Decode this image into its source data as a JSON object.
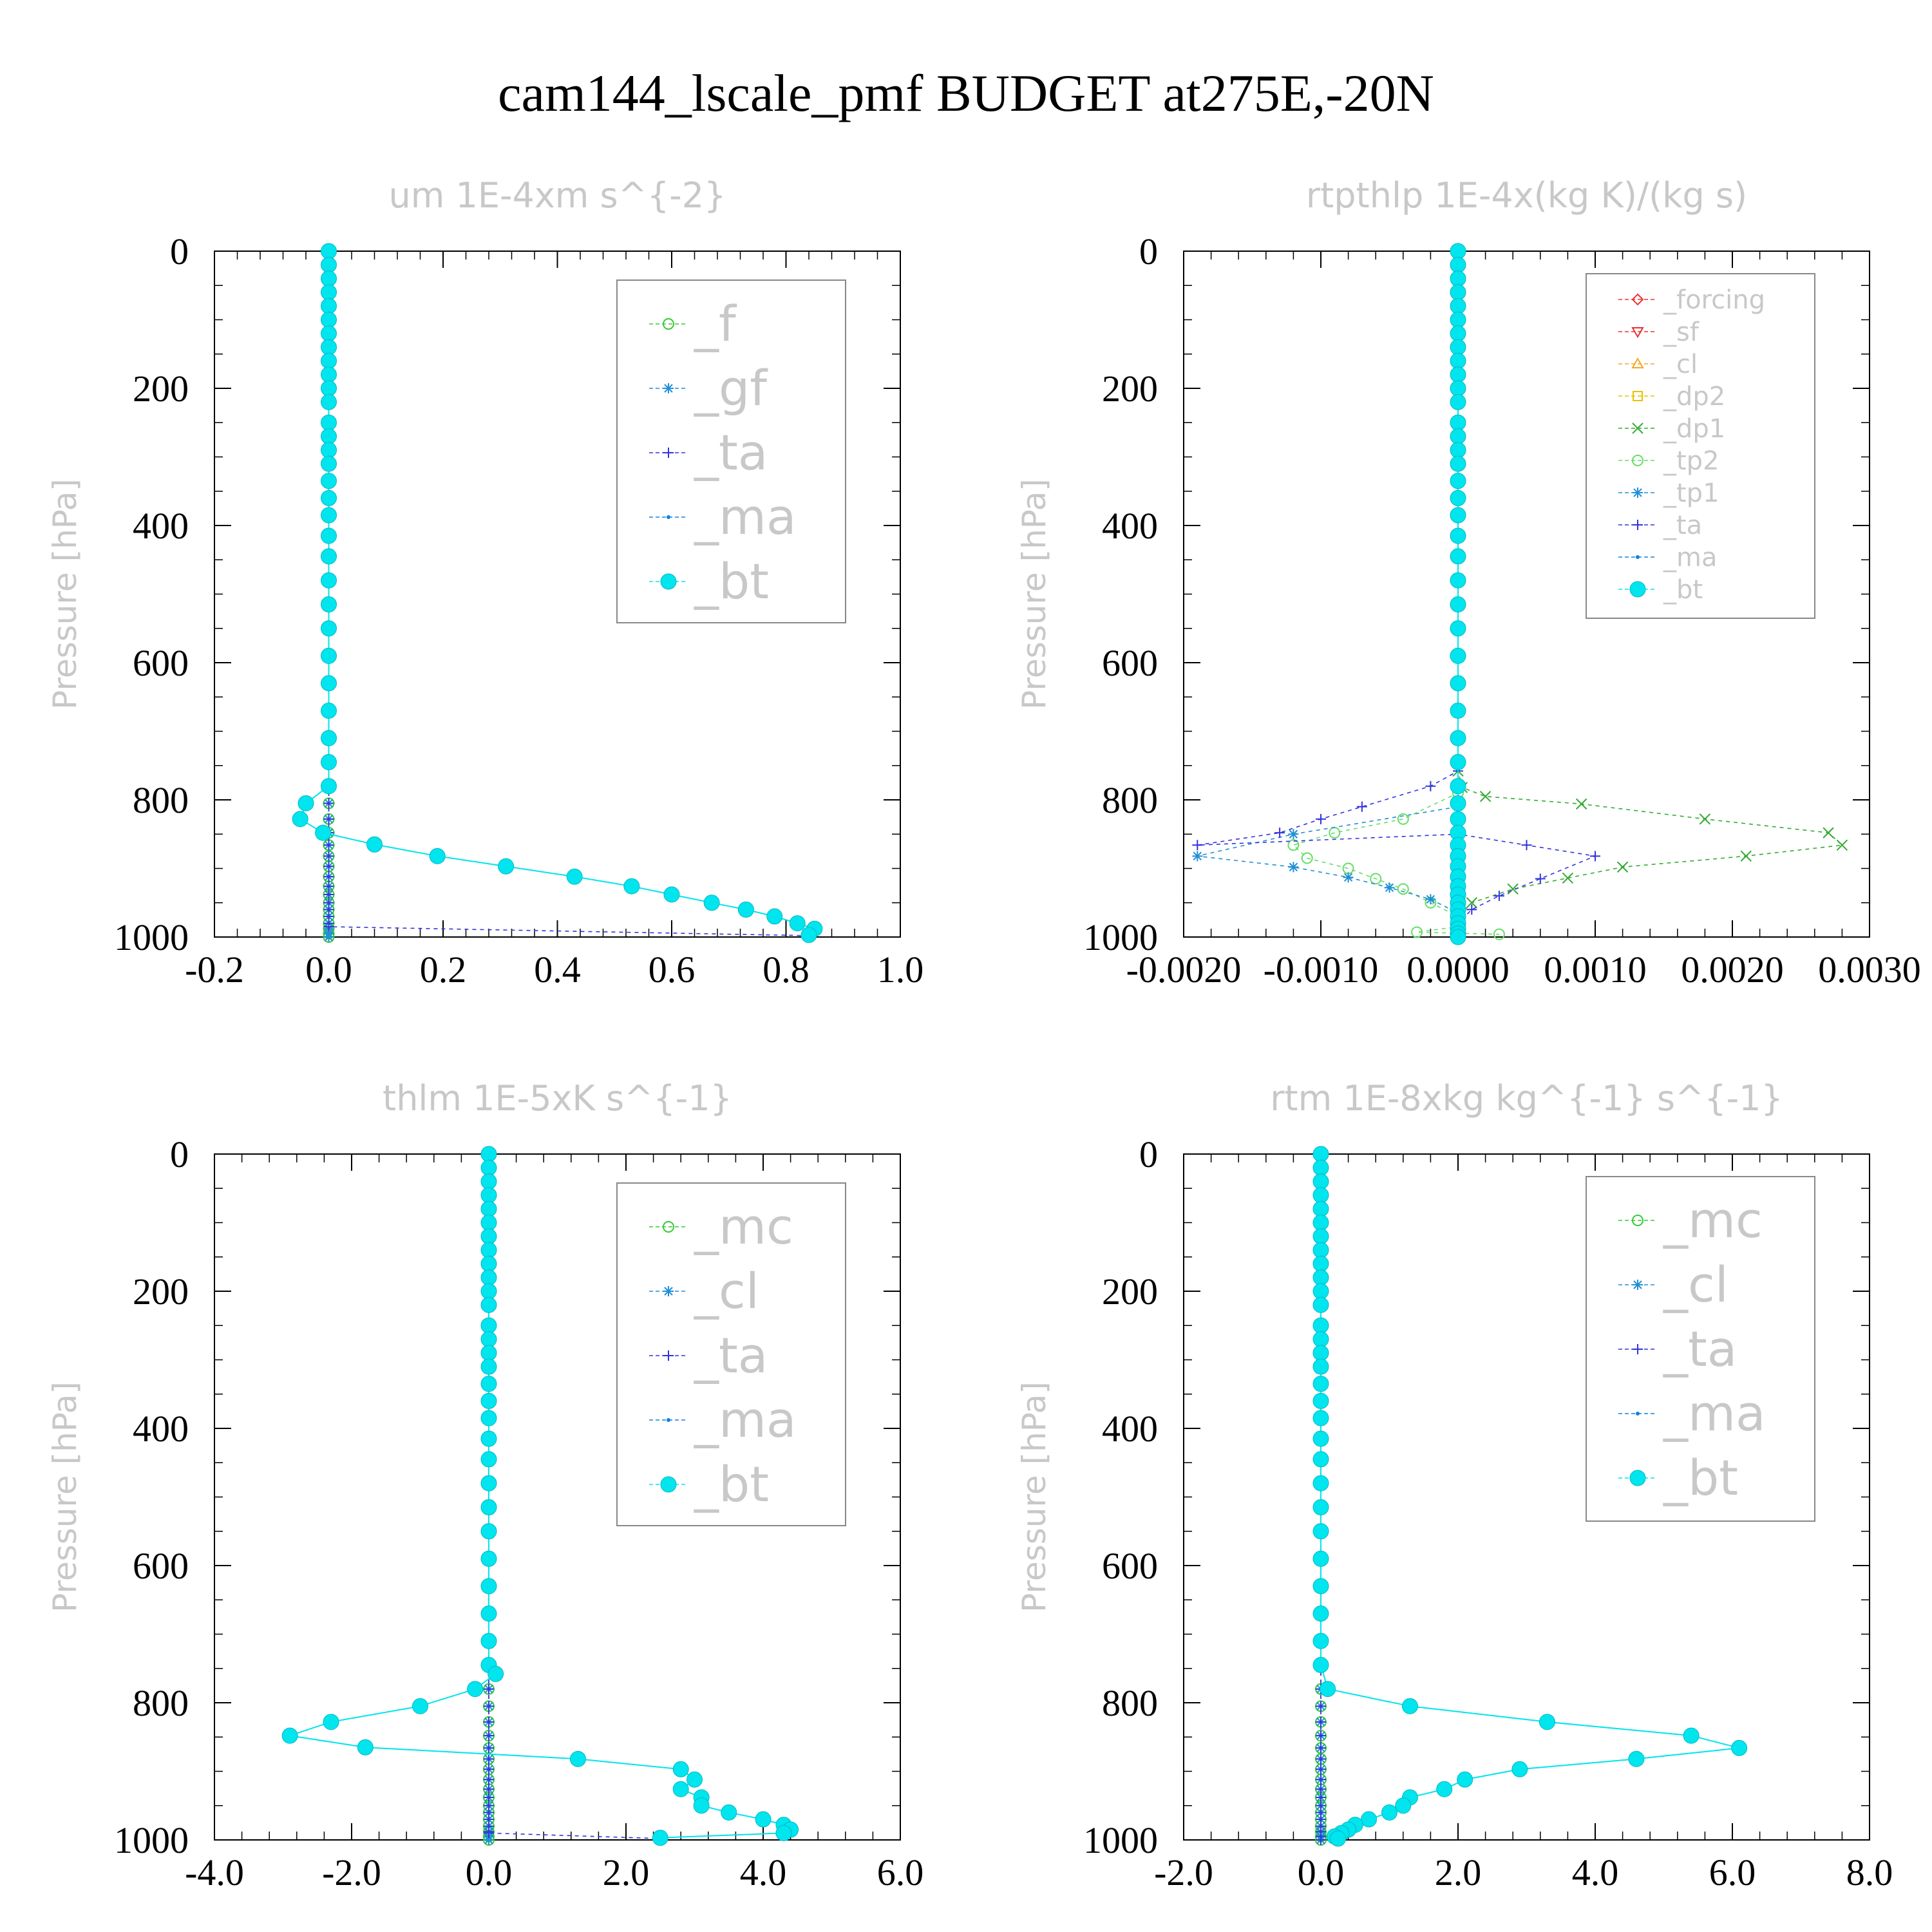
{
  "title": "cam144_lscale_pmf  BUDGET at275E,-20N",
  "chart_data": [
    {
      "type": "line",
      "title": "um   1E-4xm s^{-2}",
      "ylabel": "Pressure [hPa]",
      "xlim": [
        -0.2,
        1.0
      ],
      "ylim": [
        1000,
        0
      ],
      "xticks": [
        "-0.2",
        "0.0",
        "0.2",
        "0.4",
        "0.6",
        "0.8",
        "1.0"
      ],
      "xtick_values": [
        -0.2,
        0.0,
        0.2,
        0.4,
        0.6,
        0.8,
        1.0
      ],
      "yticks": [
        "0",
        "200",
        "400",
        "600",
        "800",
        "1000"
      ],
      "ytick_values": [
        0,
        200,
        400,
        600,
        800,
        1000
      ],
      "legend": {
        "position": "top-right",
        "size": "large"
      },
      "series": [
        {
          "name": "_f",
          "color": "#33cc33",
          "marker": "circle-open",
          "profile": "zero"
        },
        {
          "name": "_gf",
          "color": "#1f8fd6",
          "marker": "asterisk",
          "profile": "zero"
        },
        {
          "name": "_ta",
          "color": "#3333dd",
          "marker": "plus",
          "profile": "zero",
          "points": [
            [
              0.0,
              985
            ],
            [
              0.84,
              998
            ]
          ]
        },
        {
          "name": "_ma",
          "color": "#1080e0",
          "marker": "dot",
          "profile": "bt"
        },
        {
          "name": "_bt",
          "color": "#00e5ee",
          "marker": "filled-circle",
          "profile": "bt",
          "points": [
            [
              0.0,
              780
            ],
            [
              -0.04,
              805
            ],
            [
              -0.05,
              828
            ],
            [
              -0.01,
              848
            ],
            [
              0.08,
              865
            ],
            [
              0.19,
              882
            ],
            [
              0.31,
              897
            ],
            [
              0.43,
              912
            ],
            [
              0.53,
              926
            ],
            [
              0.6,
              938
            ],
            [
              0.67,
              950
            ],
            [
              0.73,
              960
            ],
            [
              0.78,
              970
            ],
            [
              0.82,
              980
            ],
            [
              0.85,
              988
            ],
            [
              0.84,
              997
            ]
          ]
        }
      ]
    },
    {
      "type": "line",
      "title": "rtpthlp   1E-4x(kg K)/(kg s)",
      "ylabel": "Pressure [hPa]",
      "xlim": [
        -0.002,
        0.003
      ],
      "ylim": [
        1000,
        0
      ],
      "xticks": [
        "-0.0020",
        "-0.0010",
        "0.0000",
        "0.0010",
        "0.0020",
        "0.0030"
      ],
      "xtick_values": [
        -0.002,
        -0.001,
        0.0,
        0.001,
        0.002,
        0.003
      ],
      "yticks": [
        "0",
        "200",
        "400",
        "600",
        "800",
        "1000"
      ],
      "ytick_values": [
        0,
        200,
        400,
        600,
        800,
        1000
      ],
      "legend": {
        "position": "top-right",
        "size": "small"
      },
      "series": [
        {
          "name": "_forcing",
          "color": "#ee3333",
          "marker": "diamond",
          "profile": "zero"
        },
        {
          "name": "_sf",
          "color": "#e83030",
          "marker": "triangle-down",
          "profile": "zero"
        },
        {
          "name": "_cl",
          "color": "#f5a623",
          "marker": "triangle-up",
          "profile": "zero"
        },
        {
          "name": "_dp2",
          "color": "#e6c200",
          "marker": "square",
          "profile": "zero"
        },
        {
          "name": "_dp1",
          "color": "#33aa33",
          "marker": "x",
          "profile": "zero",
          "points": [
            [
              0.0,
              758
            ],
            [
              3e-05,
              782
            ],
            [
              0.0002,
              795
            ],
            [
              0.0009,
              806
            ],
            [
              0.0018,
              828
            ],
            [
              0.0027,
              848
            ],
            [
              0.0028,
              866
            ],
            [
              0.0021,
              882
            ],
            [
              0.0012,
              898
            ],
            [
              0.0008,
              914
            ],
            [
              0.0004,
              930
            ],
            [
              0.0001,
              950
            ],
            [
              0.0,
              970
            ],
            [
              0.0,
              990
            ]
          ]
        },
        {
          "name": "_tp2",
          "color": "#66dd66",
          "marker": "circle-open",
          "profile": "zero",
          "points": [
            [
              0.0,
              790
            ],
            [
              -0.0004,
              828
            ],
            [
              -0.0009,
              848
            ],
            [
              -0.0012,
              866
            ],
            [
              -0.0011,
              885
            ],
            [
              -0.0008,
              900
            ],
            [
              -0.0006,
              915
            ],
            [
              -0.0004,
              930
            ],
            [
              -0.0002,
              950
            ],
            [
              0.0,
              970
            ],
            [
              0.0,
              985
            ],
            [
              -0.0003,
              993
            ],
            [
              0.0003,
              996
            ]
          ]
        },
        {
          "name": "_tp1",
          "color": "#1f8fd6",
          "marker": "asterisk",
          "profile": "zero",
          "points": [
            [
              0.0,
              810
            ],
            [
              -0.0012,
              850
            ],
            [
              -0.0019,
              882
            ],
            [
              -0.0012,
              898
            ],
            [
              -0.0008,
              913
            ],
            [
              -0.0005,
              928
            ],
            [
              -0.0002,
              945
            ],
            [
              0.0,
              965
            ],
            [
              0.0,
              985
            ]
          ]
        },
        {
          "name": "_ta",
          "color": "#3333dd",
          "marker": "plus",
          "profile": "zero",
          "points": [
            [
              0.0,
              758
            ],
            [
              -0.0002,
              780
            ],
            [
              -0.0007,
              810
            ],
            [
              -0.001,
              828
            ],
            [
              -0.0013,
              848
            ],
            [
              -0.0019,
              866
            ],
            [
              0.0,
              850
            ],
            [
              0.0005,
              866
            ],
            [
              0.001,
              882
            ],
            [
              0.0006,
              915
            ],
            [
              0.0003,
              940
            ],
            [
              0.0001,
              960
            ],
            [
              0.0,
              980
            ]
          ]
        },
        {
          "name": "_ma",
          "color": "#1080e0",
          "marker": "dot",
          "profile": "zero"
        },
        {
          "name": "_bt",
          "color": "#00e5ee",
          "marker": "filled-circle",
          "profile": "zero"
        }
      ]
    },
    {
      "type": "line",
      "title": "thlm   1E-5xK s^{-1}",
      "ylabel": "Pressure [hPa]",
      "xlim": [
        -4.0,
        6.0
      ],
      "ylim": [
        1000,
        0
      ],
      "xticks": [
        "-4.0",
        "-2.0",
        "0.0",
        "2.0",
        "4.0",
        "6.0"
      ],
      "xtick_values": [
        -4.0,
        -2.0,
        0.0,
        2.0,
        4.0,
        6.0
      ],
      "yticks": [
        "0",
        "200",
        "400",
        "600",
        "800",
        "1000"
      ],
      "ytick_values": [
        0,
        200,
        400,
        600,
        800,
        1000
      ],
      "legend": {
        "position": "top-right",
        "size": "large"
      },
      "series": [
        {
          "name": "_mc",
          "color": "#33cc33",
          "marker": "circle-open",
          "profile": "zero"
        },
        {
          "name": "_cl",
          "color": "#1f8fd6",
          "marker": "asterisk",
          "profile": "zero"
        },
        {
          "name": "_ta",
          "color": "#3333dd",
          "marker": "plus",
          "profile": "zero",
          "points": [
            [
              0.0,
              990
            ],
            [
              2.5,
              998
            ]
          ]
        },
        {
          "name": "_ma",
          "color": "#1080e0",
          "marker": "dot",
          "profile": "bt"
        },
        {
          "name": "_bt",
          "color": "#00e5ee",
          "marker": "filled-circle",
          "profile": "bt",
          "points": [
            [
              0.1,
              758
            ],
            [
              -0.2,
              780
            ],
            [
              -1.0,
              805
            ],
            [
              -2.3,
              828
            ],
            [
              -2.9,
              848
            ],
            [
              -1.8,
              865
            ],
            [
              1.3,
              882
            ],
            [
              2.8,
              897
            ],
            [
              3.0,
              912
            ],
            [
              2.8,
              926
            ],
            [
              3.1,
              938
            ],
            [
              3.1,
              950
            ],
            [
              3.5,
              960
            ],
            [
              4.0,
              970
            ],
            [
              4.3,
              978
            ],
            [
              4.4,
              985
            ],
            [
              4.3,
              990
            ],
            [
              2.5,
              997
            ]
          ]
        }
      ]
    },
    {
      "type": "line",
      "title": "rtm   1E-8xkg kg^{-1} s^{-1}",
      "ylabel": "Pressure [hPa]",
      "xlim": [
        -2.0,
        8.0
      ],
      "ylim": [
        1000,
        0
      ],
      "xticks": [
        "-2.0",
        "0.0",
        "2.0",
        "4.0",
        "6.0",
        "8.0"
      ],
      "xtick_values": [
        -2.0,
        0.0,
        2.0,
        4.0,
        6.0,
        8.0
      ],
      "yticks": [
        "0",
        "200",
        "400",
        "600",
        "800",
        "1000"
      ],
      "ytick_values": [
        0,
        200,
        400,
        600,
        800,
        1000
      ],
      "legend": {
        "position": "top-right",
        "size": "large"
      },
      "series": [
        {
          "name": "_mc",
          "color": "#33cc33",
          "marker": "circle-open",
          "profile": "zero"
        },
        {
          "name": "_cl",
          "color": "#1f8fd6",
          "marker": "asterisk",
          "profile": "zero"
        },
        {
          "name": "_ta",
          "color": "#3333dd",
          "marker": "plus",
          "profile": "zero"
        },
        {
          "name": "_ma",
          "color": "#1080e0",
          "marker": "dot",
          "profile": "bt"
        },
        {
          "name": "_bt",
          "color": "#00e5ee",
          "marker": "filled-circle",
          "profile": "bt",
          "points": [
            [
              0.1,
              780
            ],
            [
              1.3,
              805
            ],
            [
              3.3,
              828
            ],
            [
              5.4,
              848
            ],
            [
              6.1,
              866
            ],
            [
              4.6,
              882
            ],
            [
              2.9,
              897
            ],
            [
              2.1,
              912
            ],
            [
              1.8,
              926
            ],
            [
              1.3,
              938
            ],
            [
              1.2,
              950
            ],
            [
              1.0,
              960
            ],
            [
              0.7,
              970
            ],
            [
              0.5,
              978
            ],
            [
              0.4,
              985
            ],
            [
              0.3,
              990
            ],
            [
              0.2,
              995
            ],
            [
              0.25,
              998
            ]
          ]
        }
      ]
    }
  ]
}
